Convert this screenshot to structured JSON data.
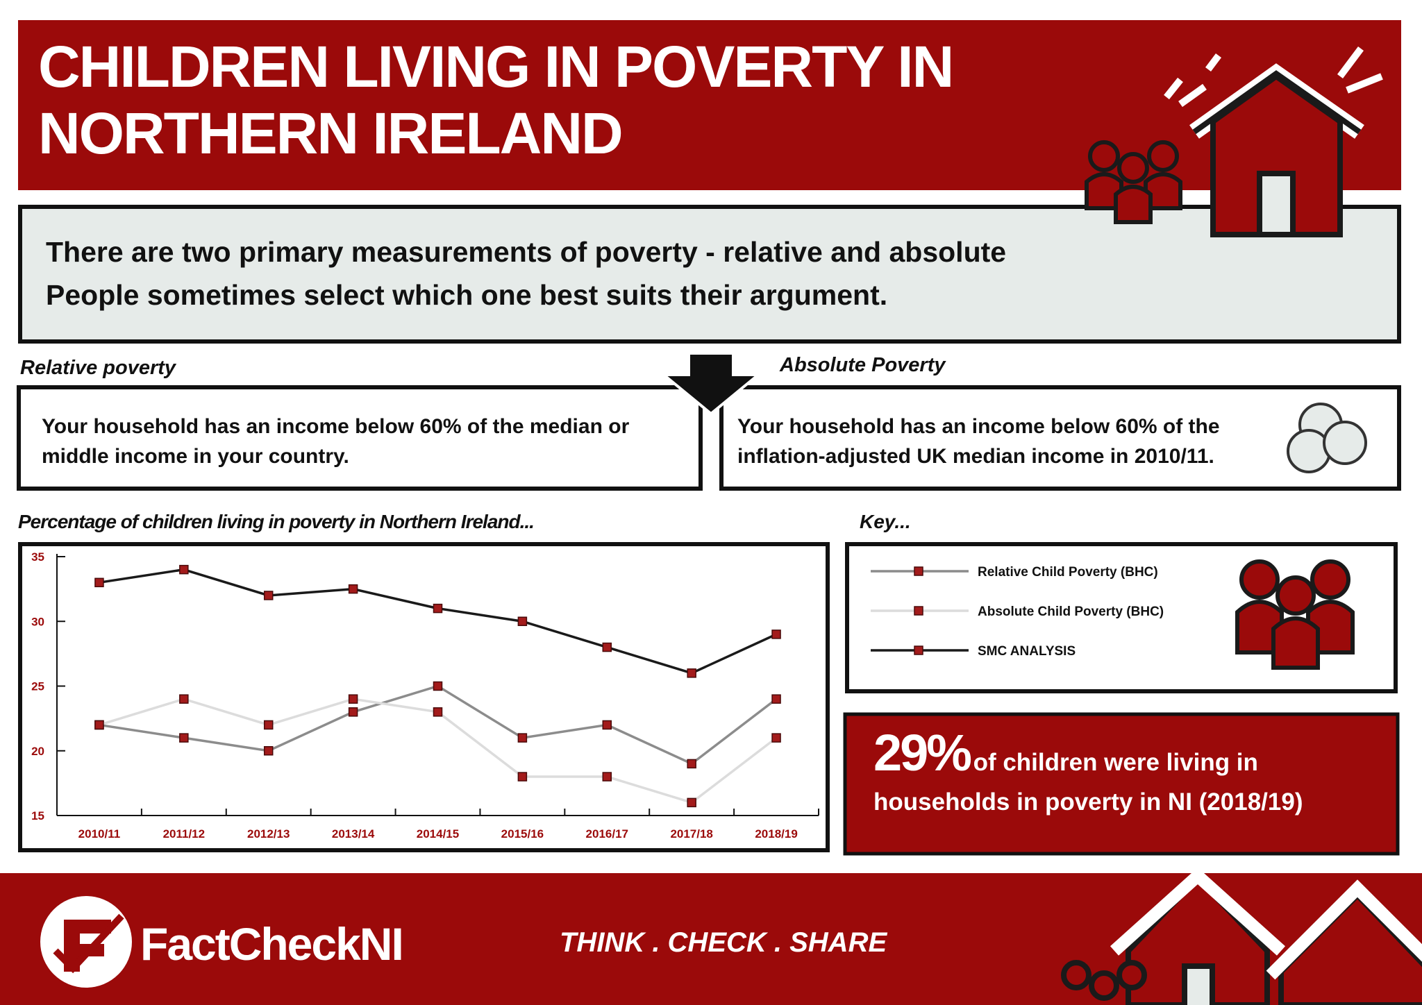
{
  "header": {
    "title": "CHILDREN LIVING IN POVERTY IN NORTHERN IRELAND"
  },
  "intro": {
    "lines": [
      "There are two primary measurements of poverty - relative and absolute",
      "People sometimes select which one best suits their argument."
    ]
  },
  "definitions": [
    {
      "heading": "Relative poverty",
      "text": "Your household has an income below 60% of the median or middle income in your country."
    },
    {
      "heading": "Absolute Poverty",
      "text": "Your household has an income below 60% of the inflation-adjusted UK median income in 2010/11."
    }
  ],
  "chart_data": {
    "type": "line",
    "title": "Percentage of children living in poverty in Northern Ireland...",
    "legend_title": "Key...",
    "categories": [
      "2010/11",
      "2011/12",
      "2012/13",
      "2013/14",
      "2014/15",
      "2015/16",
      "2016/17",
      "2017/18",
      "2018/19"
    ],
    "series": [
      {
        "name": "Relative Child Poverty (BHC)",
        "color": "#8c8c8c",
        "values": [
          22,
          21,
          20,
          23,
          25,
          21,
          22,
          19,
          24
        ]
      },
      {
        "name": "Absolute Child Poverty (BHC)",
        "color": "#dcdcdc",
        "values": [
          22,
          24,
          22,
          24,
          23,
          18,
          18,
          16,
          21
        ]
      },
      {
        "name": "SMC ANALYSIS",
        "color": "#1a1a1a",
        "values": [
          33,
          34,
          32,
          32.5,
          31,
          30,
          28,
          26,
          29
        ]
      }
    ],
    "marker_color": "#a31b1b",
    "ylim": [
      15,
      35
    ],
    "yticks": [
      15,
      20,
      25,
      30,
      35
    ]
  },
  "stat": {
    "value": "29%",
    "text": "of children were living in households in poverty in NI (2018/19)"
  },
  "footer": {
    "brand": "FactCheckNI",
    "tagline": "THINK . CHECK . SHARE"
  }
}
